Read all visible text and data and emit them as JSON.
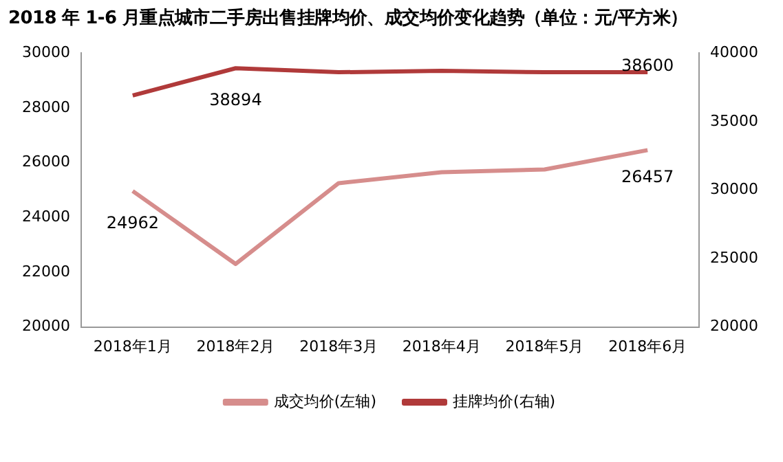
{
  "chart_data": {
    "type": "line",
    "title": "2018 年 1-6 月重点城市二手房出售挂牌均价、成交均价变化趋势（单位：元/平方米）",
    "categories": [
      "2018年1月",
      "2018年2月",
      "2018年3月",
      "2018年4月",
      "2018年5月",
      "2018年6月"
    ],
    "series": [
      {
        "name": "成交均价(左轴)",
        "color": "#d68d8c",
        "values": [
          24962,
          22300,
          25250,
          25650,
          25750,
          26457
        ],
        "value_labels": [
          "24962",
          null,
          null,
          null,
          null,
          "26457"
        ]
      },
      {
        "name": "挂牌均价(右轴)",
        "color": "#b03a3a",
        "axis": "y2",
        "values": [
          36900,
          38894,
          38600,
          38700,
          38600,
          38600
        ],
        "value_labels": [
          null,
          "38894",
          null,
          null,
          null,
          "38600"
        ]
      }
    ],
    "ylim": [
      20000,
      30000
    ],
    "yticks": [
      20000,
      22000,
      24000,
      26000,
      28000,
      30000
    ],
    "y2lim": [
      20000,
      40000
    ],
    "y2ticks": [
      20000,
      25000,
      30000,
      35000,
      40000
    ],
    "grid": false,
    "legend": "bottom",
    "marker": "none",
    "line_style": "solid"
  }
}
